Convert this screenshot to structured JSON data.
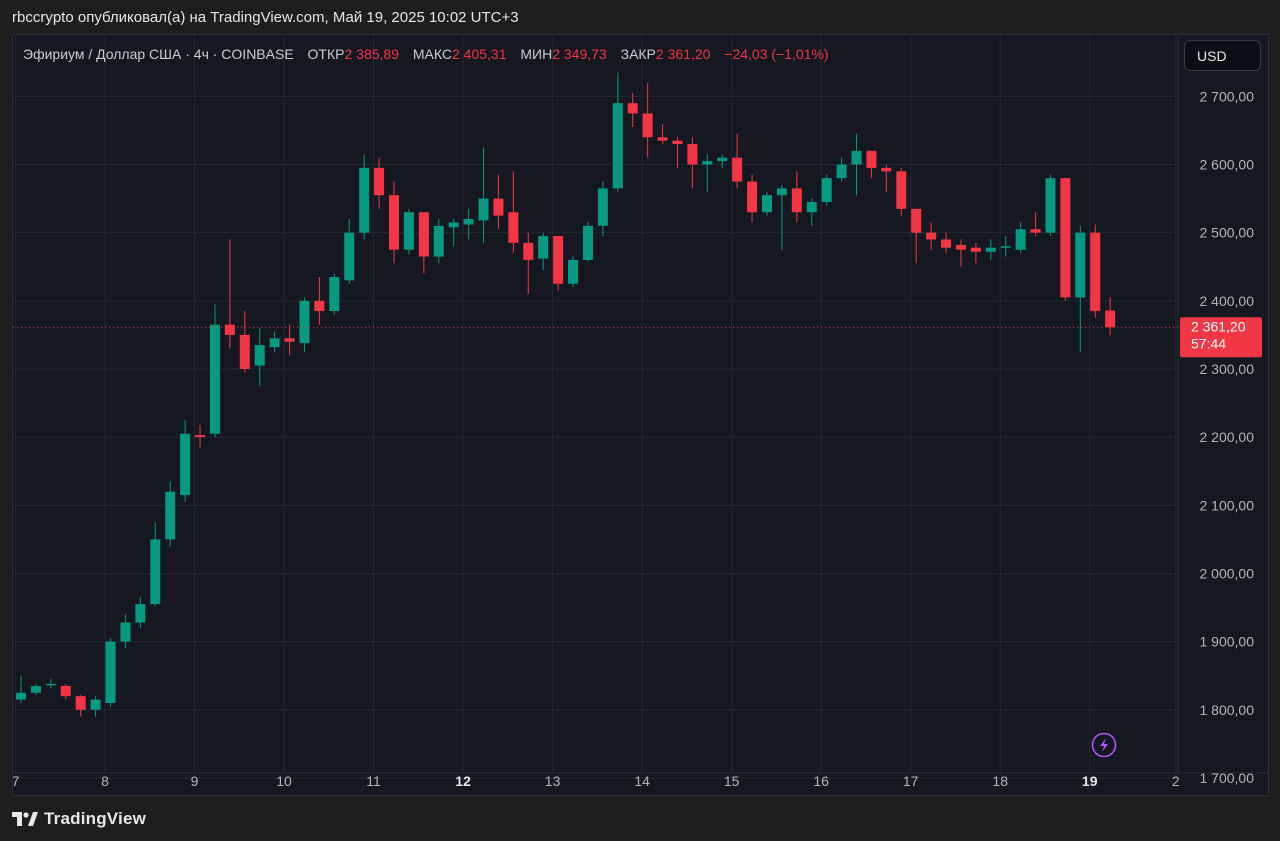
{
  "header": {
    "publisher_line": "rbccrypto опубликовал(а) на TradingView.com, Май 19, 2025 10:02 UTC+3"
  },
  "legend": {
    "symbol": "Эфириум / Доллар США · 4ч · COINBASE",
    "open_label": "ОТКР",
    "open_value": "2 385,89",
    "high_label": "МАКС",
    "high_value": "2 405,31",
    "low_label": "МИН",
    "low_value": "2 349,73",
    "close_label": "ЗАКР",
    "close_value": "2 361,20",
    "change": "−24,03 (−1,01%)"
  },
  "currency_button": "USD",
  "price_tag": {
    "price": "2 361,20",
    "countdown": "57:44"
  },
  "footer": {
    "brand": "TradingView"
  },
  "colors": {
    "up": "#089981",
    "down": "#f23645",
    "grid": "#232733",
    "axis_text": "#b2b5be"
  },
  "chart_data": {
    "type": "candlestick",
    "title": "Эфириум / Доллар США · 4ч · COINBASE",
    "ylim": [
      1675,
      2790
    ],
    "y_ticks": [
      {
        "value": 1700,
        "label": "1700,00"
      },
      {
        "value": 1800,
        "label": "1800,00"
      },
      {
        "value": 1900,
        "label": "1900,00"
      },
      {
        "value": 2000,
        "label": "2000,00"
      },
      {
        "value": 2100,
        "label": "2100,00"
      },
      {
        "value": 2200,
        "label": "2200,00"
      },
      {
        "value": 2300,
        "label": "2300,00"
      },
      {
        "value": 2400,
        "label": "2400,00"
      },
      {
        "value": 2500,
        "label": "2500,00"
      },
      {
        "value": 2600,
        "label": "2600,00"
      },
      {
        "value": 2700,
        "label": "2700,00"
      }
    ],
    "x_ticks": [
      {
        "label": "7",
        "index": -0.37,
        "bold": false
      },
      {
        "label": "8",
        "index": 5.63,
        "bold": false
      },
      {
        "label": "9",
        "index": 11.63,
        "bold": false
      },
      {
        "label": "10",
        "index": 17.63,
        "bold": false
      },
      {
        "label": "11",
        "index": 23.63,
        "bold": false
      },
      {
        "label": "12",
        "index": 29.63,
        "bold": true
      },
      {
        "label": "13",
        "index": 35.63,
        "bold": false
      },
      {
        "label": "14",
        "index": 41.63,
        "bold": false
      },
      {
        "label": "15",
        "index": 47.63,
        "bold": false
      },
      {
        "label": "16",
        "index": 53.63,
        "bold": false
      },
      {
        "label": "17",
        "index": 59.63,
        "bold": false
      },
      {
        "label": "18",
        "index": 65.63,
        "bold": false
      },
      {
        "label": "19",
        "index": 71.63,
        "bold": true
      },
      {
        "label": "2",
        "index": 77.4,
        "bold": false
      }
    ],
    "current_price": 2361.2,
    "candles": [
      {
        "o": 1815,
        "h": 1850,
        "l": 1810,
        "c": 1825
      },
      {
        "o": 1825,
        "h": 1838,
        "l": 1822,
        "c": 1835
      },
      {
        "o": 1838,
        "h": 1845,
        "l": 1832,
        "c": 1838
      },
      {
        "o": 1835,
        "h": 1838,
        "l": 1815,
        "c": 1820
      },
      {
        "o": 1820,
        "h": 1822,
        "l": 1790,
        "c": 1800
      },
      {
        "o": 1800,
        "h": 1820,
        "l": 1790,
        "c": 1815
      },
      {
        "o": 1810,
        "h": 1905,
        "l": 1805,
        "c": 1900
      },
      {
        "o": 1900,
        "h": 1940,
        "l": 1890,
        "c": 1928
      },
      {
        "o": 1928,
        "h": 1965,
        "l": 1920,
        "c": 1955
      },
      {
        "o": 1955,
        "h": 2075,
        "l": 1952,
        "c": 2050
      },
      {
        "o": 2050,
        "h": 2135,
        "l": 2040,
        "c": 2120
      },
      {
        "o": 2115,
        "h": 2225,
        "l": 2105,
        "c": 2205
      },
      {
        "o": 2203,
        "h": 2218,
        "l": 2185,
        "c": 2200
      },
      {
        "o": 2205,
        "h": 2395,
        "l": 2200,
        "c": 2365
      },
      {
        "o": 2365,
        "h": 2490,
        "l": 2330,
        "c": 2350
      },
      {
        "o": 2350,
        "h": 2385,
        "l": 2295,
        "c": 2300
      },
      {
        "o": 2305,
        "h": 2360,
        "l": 2275,
        "c": 2335
      },
      {
        "o": 2332,
        "h": 2355,
        "l": 2325,
        "c": 2345
      },
      {
        "o": 2345,
        "h": 2365,
        "l": 2320,
        "c": 2340
      },
      {
        "o": 2338,
        "h": 2405,
        "l": 2325,
        "c": 2400
      },
      {
        "o": 2400,
        "h": 2435,
        "l": 2365,
        "c": 2385
      },
      {
        "o": 2385,
        "h": 2440,
        "l": 2380,
        "c": 2435
      },
      {
        "o": 2430,
        "h": 2520,
        "l": 2425,
        "c": 2500
      },
      {
        "o": 2500,
        "h": 2615,
        "l": 2490,
        "c": 2595
      },
      {
        "o": 2595,
        "h": 2610,
        "l": 2535,
        "c": 2555
      },
      {
        "o": 2555,
        "h": 2575,
        "l": 2455,
        "c": 2475
      },
      {
        "o": 2475,
        "h": 2535,
        "l": 2468,
        "c": 2530
      },
      {
        "o": 2530,
        "h": 2530,
        "l": 2440,
        "c": 2465
      },
      {
        "o": 2465,
        "h": 2520,
        "l": 2455,
        "c": 2510
      },
      {
        "o": 2508,
        "h": 2520,
        "l": 2480,
        "c": 2515
      },
      {
        "o": 2512,
        "h": 2535,
        "l": 2490,
        "c": 2520
      },
      {
        "o": 2518,
        "h": 2625,
        "l": 2485,
        "c": 2550
      },
      {
        "o": 2550,
        "h": 2585,
        "l": 2505,
        "c": 2525
      },
      {
        "o": 2530,
        "h": 2590,
        "l": 2470,
        "c": 2485
      },
      {
        "o": 2485,
        "h": 2500,
        "l": 2410,
        "c": 2460
      },
      {
        "o": 2462,
        "h": 2500,
        "l": 2445,
        "c": 2495
      },
      {
        "o": 2495,
        "h": 2495,
        "l": 2415,
        "c": 2425
      },
      {
        "o": 2425,
        "h": 2465,
        "l": 2420,
        "c": 2460
      },
      {
        "o": 2460,
        "h": 2515,
        "l": 2458,
        "c": 2510
      },
      {
        "o": 2510,
        "h": 2575,
        "l": 2495,
        "c": 2565
      },
      {
        "o": 2565,
        "h": 2735,
        "l": 2560,
        "c": 2690
      },
      {
        "o": 2690,
        "h": 2705,
        "l": 2655,
        "c": 2675
      },
      {
        "o": 2675,
        "h": 2720,
        "l": 2610,
        "c": 2640
      },
      {
        "o": 2640,
        "h": 2660,
        "l": 2630,
        "c": 2635
      },
      {
        "o": 2635,
        "h": 2640,
        "l": 2595,
        "c": 2630
      },
      {
        "o": 2630,
        "h": 2640,
        "l": 2565,
        "c": 2600
      },
      {
        "o": 2600,
        "h": 2615,
        "l": 2560,
        "c": 2605
      },
      {
        "o": 2605,
        "h": 2615,
        "l": 2595,
        "c": 2610
      },
      {
        "o": 2610,
        "h": 2645,
        "l": 2565,
        "c": 2575
      },
      {
        "o": 2575,
        "h": 2585,
        "l": 2515,
        "c": 2530
      },
      {
        "o": 2530,
        "h": 2560,
        "l": 2525,
        "c": 2555
      },
      {
        "o": 2555,
        "h": 2570,
        "l": 2475,
        "c": 2565
      },
      {
        "o": 2565,
        "h": 2590,
        "l": 2515,
        "c": 2530
      },
      {
        "o": 2530,
        "h": 2550,
        "l": 2510,
        "c": 2545
      },
      {
        "o": 2545,
        "h": 2585,
        "l": 2540,
        "c": 2580
      },
      {
        "o": 2580,
        "h": 2610,
        "l": 2575,
        "c": 2600
      },
      {
        "o": 2600,
        "h": 2645,
        "l": 2555,
        "c": 2620
      },
      {
        "o": 2620,
        "h": 2620,
        "l": 2580,
        "c": 2595
      },
      {
        "o": 2595,
        "h": 2600,
        "l": 2560,
        "c": 2590
      },
      {
        "o": 2590,
        "h": 2595,
        "l": 2525,
        "c": 2535
      },
      {
        "o": 2535,
        "h": 2535,
        "l": 2455,
        "c": 2500
      },
      {
        "o": 2500,
        "h": 2515,
        "l": 2475,
        "c": 2490
      },
      {
        "o": 2490,
        "h": 2500,
        "l": 2470,
        "c": 2478
      },
      {
        "o": 2482,
        "h": 2490,
        "l": 2450,
        "c": 2475
      },
      {
        "o": 2478,
        "h": 2485,
        "l": 2455,
        "c": 2472
      },
      {
        "o": 2472,
        "h": 2490,
        "l": 2460,
        "c": 2478
      },
      {
        "o": 2478,
        "h": 2495,
        "l": 2465,
        "c": 2480
      },
      {
        "o": 2475,
        "h": 2515,
        "l": 2470,
        "c": 2505
      },
      {
        "o": 2505,
        "h": 2530,
        "l": 2495,
        "c": 2500
      },
      {
        "o": 2500,
        "h": 2585,
        "l": 2495,
        "c": 2580
      },
      {
        "o": 2580,
        "h": 2580,
        "l": 2400,
        "c": 2405
      },
      {
        "o": 2405,
        "h": 2510,
        "l": 2325,
        "c": 2500
      },
      {
        "o": 2500,
        "h": 2512,
        "l": 2375,
        "c": 2385
      },
      {
        "o": 2385.89,
        "h": 2405.31,
        "l": 2349.73,
        "c": 2361.2
      }
    ]
  }
}
